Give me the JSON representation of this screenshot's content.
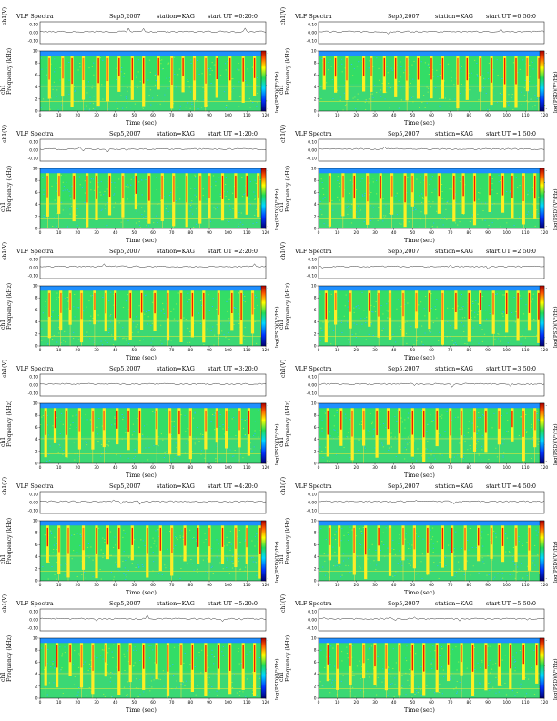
{
  "chart_data": [
    {
      "type": "heatmap",
      "title": "VLF Spectra",
      "date": "Sep5,2007",
      "station": "station=KAG",
      "start": "start UT =0:20:0",
      "xlabel": "Time (sec)",
      "ylabel": "Frequency (kHz)",
      "ylabel_channel": "ch1",
      "top_ylabel": "ch1(V)",
      "colorbar_label": "log(PSD)(V²/Hz)",
      "xlim": [
        0,
        120
      ],
      "ylim": [
        0,
        10
      ],
      "top_ylim": [
        -0.1,
        0.1
      ],
      "xticks": [
        0,
        10,
        20,
        30,
        40,
        50,
        60,
        70,
        80,
        90,
        100,
        110,
        120
      ],
      "yticks": [
        0,
        2,
        4,
        6,
        8,
        10
      ],
      "top_yticks": [
        "0.10",
        "0.00",
        "-0.10"
      ],
      "cbar_ticks": [
        "-",
        "-"
      ],
      "bursts": [
        5,
        12,
        17,
        23,
        31,
        36,
        42,
        49,
        55,
        63,
        70,
        76,
        82,
        88,
        94,
        101,
        108,
        114,
        119
      ]
    },
    {
      "type": "heatmap",
      "title": "VLF Spectra",
      "date": "Sep5,2007",
      "station": "station=KAG",
      "start": "start UT =0:50:0",
      "xlabel": "Time (sec)",
      "ylabel": "Frequency (kHz)",
      "ylabel_channel": "ch1",
      "top_ylabel": "ch1(V)",
      "colorbar_label": "log(PSD)(V²/Hz)",
      "xlim": [
        0,
        120
      ],
      "ylim": [
        0,
        10
      ],
      "top_ylim": [
        -0.1,
        0.1
      ],
      "xticks": [
        0,
        10,
        20,
        30,
        40,
        50,
        60,
        70,
        80,
        90,
        100,
        110,
        120
      ],
      "yticks": [
        0,
        2,
        4,
        6,
        8,
        10
      ],
      "top_yticks": [
        "0.10",
        "0.00",
        "-0.10"
      ],
      "cbar_ticks": [
        "-",
        "-"
      ],
      "bursts": [
        3,
        9,
        15,
        24,
        28,
        35,
        41,
        47,
        53,
        60,
        66,
        74,
        79,
        86,
        92,
        99,
        105,
        111,
        117
      ]
    },
    {
      "type": "heatmap",
      "title": "VLF Spectra",
      "date": "Sep5,2007",
      "station": "station=KAG",
      "start": "start UT =1:20:0",
      "xlabel": "Time (sec)",
      "ylabel": "Frequency (kHz)",
      "ylabel_channel": "ch1",
      "top_ylabel": "ch1(V)",
      "colorbar_label": "log(PSD)(V²/Hz)",
      "xlim": [
        0,
        120
      ],
      "ylim": [
        0,
        10
      ],
      "top_ylim": [
        -0.1,
        0.1
      ],
      "xticks": [
        0,
        10,
        20,
        30,
        40,
        50,
        60,
        70,
        80,
        90,
        100,
        110,
        120
      ],
      "yticks": [
        0,
        2,
        4,
        6,
        8,
        10
      ],
      "top_yticks": [
        "0.10",
        "0.00",
        "-0.10"
      ],
      "cbar_ticks": [
        "-",
        "-"
      ],
      "bursts": [
        4,
        10,
        18,
        25,
        30,
        37,
        44,
        51,
        58,
        65,
        71,
        78,
        85,
        90,
        97,
        104,
        110,
        116
      ]
    },
    {
      "type": "heatmap",
      "title": "VLF Spectra",
      "date": "Sep5,2007",
      "station": "station=KAG",
      "start": "start UT =1:50:0",
      "xlabel": "Time (sec)",
      "ylabel": "Frequency (kHz)",
      "ylabel_channel": "ch1",
      "top_ylabel": "ch1(V)",
      "colorbar_label": "log(PSD)(V²/Hz)",
      "xlim": [
        0,
        120
      ],
      "ylim": [
        0,
        10
      ],
      "top_ylim": [
        -0.1,
        0.1
      ],
      "xticks": [
        0,
        10,
        20,
        30,
        40,
        50,
        60,
        70,
        80,
        90,
        100,
        110,
        120
      ],
      "yticks": [
        0,
        2,
        4,
        6,
        8,
        10
      ],
      "top_yticks": [
        "0.10",
        "0.00",
        "-0.10"
      ],
      "cbar_ticks": [
        "-",
        "-"
      ],
      "bursts": [
        6,
        13,
        19,
        26,
        33,
        39,
        46,
        50,
        57,
        64,
        72,
        77,
        83,
        91,
        98,
        103,
        109,
        115
      ]
    },
    {
      "type": "heatmap",
      "title": "VLF Spectra",
      "date": "Sep5,2007",
      "station": "station=KAG",
      "start": "start UT =2:20:0",
      "xlabel": "Time (sec)",
      "ylabel": "Frequency (kHz)",
      "ylabel_channel": "ch1",
      "top_ylabel": "ch1(V)",
      "colorbar_label": "log(PSD)(V²/Hz)",
      "xlim": [
        0,
        120
      ],
      "ylim": [
        0,
        10
      ],
      "top_ylim": [
        -0.1,
        0.1
      ],
      "xticks": [
        0,
        10,
        20,
        30,
        40,
        50,
        60,
        70,
        80,
        90,
        100,
        110,
        120
      ],
      "yticks": [
        0,
        2,
        4,
        6,
        8,
        10
      ],
      "top_yticks": [
        "0.10",
        "0.00",
        "-0.10"
      ],
      "cbar_ticks": [
        "-",
        "-"
      ],
      "bursts": [
        5,
        11,
        16,
        22,
        29,
        35,
        40,
        48,
        54,
        61,
        68,
        75,
        81,
        87,
        95,
        102,
        107,
        113,
        118
      ]
    },
    {
      "type": "heatmap",
      "title": "VLF Spectra",
      "date": "Sep5,2007",
      "station": "station=KAG",
      "start": "start UT =2:50:0",
      "xlabel": "Time (sec)",
      "ylabel": "Frequency (kHz)",
      "ylabel_channel": "ch1",
      "top_ylabel": "ch1(V)",
      "colorbar_label": "log(PSD)(V²/Hz)",
      "xlim": [
        0,
        120
      ],
      "ylim": [
        0,
        10
      ],
      "top_ylim": [
        -0.1,
        0.1
      ],
      "xticks": [
        0,
        10,
        20,
        30,
        40,
        50,
        60,
        70,
        80,
        90,
        100,
        110,
        120
      ],
      "yticks": [
        0,
        2,
        4,
        6,
        8,
        10
      ],
      "top_yticks": [
        "0.10",
        "0.00",
        "-0.10"
      ],
      "cbar_ticks": [
        "-",
        "-"
      ],
      "bursts": [
        4,
        9,
        17,
        27,
        32,
        38,
        45,
        52,
        59,
        66,
        73,
        80,
        86,
        93,
        100,
        106,
        112,
        117
      ]
    },
    {
      "type": "heatmap",
      "title": "VLF Spectra",
      "date": "Sep5,2007",
      "station": "station=KAG",
      "start": "start UT =3:20:0",
      "xlabel": "Time (sec)",
      "ylabel": "Frequency (kHz)",
      "ylabel_channel": "ch1",
      "top_ylabel": "ch1(V)",
      "colorbar_label": "log(PSD)(V²/Hz)",
      "xlim": [
        0,
        120
      ],
      "ylim": [
        0,
        10
      ],
      "top_ylim": [
        -0.1,
        0.1
      ],
      "xticks": [
        0,
        10,
        20,
        30,
        40,
        50,
        60,
        70,
        80,
        90,
        100,
        110,
        120
      ],
      "yticks": [
        0,
        2,
        4,
        6,
        8,
        10
      ],
      "top_yticks": [
        "0.10",
        "0.00",
        "-0.10"
      ],
      "cbar_ticks": [
        "-",
        "-"
      ],
      "bursts": [
        3,
        8,
        14,
        21,
        28,
        34,
        41,
        47,
        53,
        62,
        69,
        74,
        80,
        88,
        94,
        99,
        106,
        111,
        118
      ]
    },
    {
      "type": "heatmap",
      "title": "VLF Spectra",
      "date": "Sep5,2007",
      "station": "station=KAG",
      "start": "start UT =3:50:0",
      "xlabel": "Time (sec)",
      "ylabel": "Frequency (kHz)",
      "ylabel_channel": "ch1",
      "top_ylabel": "ch1(V)",
      "colorbar_label": "log(PSD)(V²/Hz)",
      "xlim": [
        0,
        120
      ],
      "ylim": [
        0,
        10
      ],
      "top_ylim": [
        -0.1,
        0.1
      ],
      "xticks": [
        0,
        10,
        20,
        30,
        40,
        50,
        60,
        70,
        80,
        90,
        100,
        110,
        120
      ],
      "yticks": [
        0,
        2,
        4,
        6,
        8,
        10
      ],
      "top_yticks": [
        "0.10",
        "0.00",
        "-0.10"
      ],
      "cbar_ticks": [
        "-",
        "-"
      ],
      "bursts": [
        5,
        12,
        18,
        24,
        31,
        37,
        43,
        50,
        56,
        63,
        70,
        76,
        83,
        89,
        96,
        103,
        109,
        115
      ]
    },
    {
      "type": "heatmap",
      "title": "VLF Spectra",
      "date": "Sep5,2007",
      "station": "station=KAG",
      "start": "start UT =4:20:0",
      "xlabel": "Time (sec)",
      "ylabel": "Frequency (kHz)",
      "ylabel_channel": "ch1",
      "top_ylabel": "ch1(V)",
      "colorbar_label": "log(PSD)(V²/Hz)",
      "xlim": [
        0,
        120
      ],
      "ylim": [
        0,
        10
      ],
      "top_ylim": [
        -0.1,
        0.1
      ],
      "xticks": [
        0,
        10,
        20,
        30,
        40,
        50,
        60,
        70,
        80,
        90,
        100,
        110,
        120
      ],
      "yticks": [
        0,
        2,
        4,
        6,
        8,
        10
      ],
      "top_yticks": [
        "0.10",
        "0.00",
        "-0.10"
      ],
      "cbar_ticks": [
        "-",
        "-"
      ],
      "bursts": [
        4,
        10,
        15,
        23,
        30,
        36,
        42,
        49,
        57,
        64,
        70,
        77,
        84,
        90,
        97,
        104,
        110,
        117
      ]
    },
    {
      "type": "heatmap",
      "title": "VLF Spectra",
      "date": "Sep5,2007",
      "station": "station=KAG",
      "start": "start UT =4:50:0",
      "xlabel": "Time (sec)",
      "ylabel": "Frequency (kHz)",
      "ylabel_channel": "ch1",
      "top_ylabel": "ch1(V)",
      "colorbar_label": "log(PSD)(V²/Hz)",
      "xlim": [
        0,
        120
      ],
      "ylim": [
        0,
        10
      ],
      "top_ylim": [
        -0.1,
        0.1
      ],
      "xticks": [
        0,
        10,
        20,
        30,
        40,
        50,
        60,
        70,
        80,
        90,
        100,
        110,
        120
      ],
      "yticks": [
        0,
        2,
        4,
        6,
        8,
        10
      ],
      "top_yticks": [
        "0.10",
        "0.00",
        "-0.10"
      ],
      "cbar_ticks": [
        "-",
        "-"
      ],
      "bursts": [
        6,
        11,
        19,
        25,
        32,
        38,
        45,
        51,
        58,
        66,
        71,
        78,
        85,
        92,
        98,
        105,
        112,
        118
      ]
    },
    {
      "type": "heatmap",
      "title": "VLF Spectra",
      "date": "Sep5,2007",
      "station": "station=KAG",
      "start": "start UT =5:20:0",
      "xlabel": "Time (sec)",
      "ylabel": "Frequency (kHz)",
      "ylabel_channel": "ch1",
      "top_ylabel": "ch1(V)",
      "colorbar_label": "log(PSD)(V²/Hz)",
      "xlim": [
        0,
        120
      ],
      "ylim": [
        0,
        10
      ],
      "top_ylim": [
        -0.1,
        0.1
      ],
      "xticks": [
        0,
        10,
        20,
        30,
        40,
        50,
        60,
        70,
        80,
        90,
        100,
        110,
        120
      ],
      "yticks": [
        0,
        2,
        4,
        6,
        8,
        10
      ],
      "top_yticks": [
        "0.10",
        "0.00",
        "-0.10"
      ],
      "cbar_ticks": [
        "-",
        "-"
      ],
      "bursts": [
        3,
        9,
        16,
        22,
        28,
        35,
        42,
        48,
        55,
        62,
        68,
        75,
        81,
        88,
        95,
        101,
        108,
        114,
        119
      ]
    },
    {
      "type": "heatmap",
      "title": "VLF Spectra",
      "date": "Sep5,2007",
      "station": "station=KAG",
      "start": "start UT =5:50:0",
      "xlabel": "Time (sec)",
      "ylabel": "Frequency (kHz)",
      "ylabel_channel": "ch1",
      "top_ylabel": "ch1(V)",
      "colorbar_label": "log(PSD)(V²/Hz)",
      "xlim": [
        0,
        120
      ],
      "ylim": [
        0,
        10
      ],
      "top_ylim": [
        -0.1,
        0.1
      ],
      "xticks": [
        0,
        10,
        20,
        30,
        40,
        50,
        60,
        70,
        80,
        90,
        100,
        110,
        120
      ],
      "yticks": [
        0,
        2,
        4,
        6,
        8,
        10
      ],
      "top_yticks": [
        "0.10",
        "0.00",
        "-0.10"
      ],
      "cbar_ticks": [
        "-",
        "-"
      ],
      "bursts": [
        5,
        10,
        17,
        24,
        30,
        36,
        43,
        50,
        56,
        63,
        69,
        76,
        82,
        89,
        96,
        102,
        109,
        116
      ]
    }
  ]
}
